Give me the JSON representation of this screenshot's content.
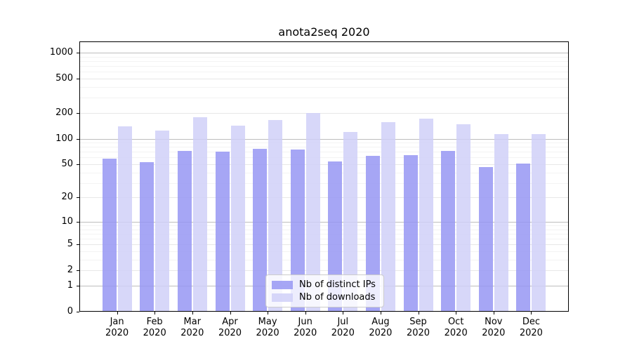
{
  "chart_data": {
    "type": "bar",
    "title": "anota2seq 2020",
    "year_label": "2020",
    "categories": [
      "Jan",
      "Feb",
      "Mar",
      "Apr",
      "May",
      "Jun",
      "Jul",
      "Aug",
      "Sep",
      "Oct",
      "Nov",
      "Dec"
    ],
    "series": [
      {
        "name": "Nb of distinct IPs",
        "color": "rgba(150,150,243,0.85)",
        "values": [
          58,
          53,
          72,
          71,
          76,
          75,
          54,
          63,
          64,
          72,
          46,
          51
        ]
      },
      {
        "name": "Nb of downloads",
        "color": "rgba(208,208,248,0.85)",
        "values": [
          140,
          124,
          179,
          142,
          165,
          201,
          120,
          156,
          171,
          146,
          114,
          113
        ]
      }
    ],
    "yscale": "log1p",
    "yticks": [
      0,
      1,
      2,
      5,
      10,
      20,
      50,
      100,
      200,
      500,
      1000
    ],
    "ylim": [
      0,
      1324
    ],
    "xlabel": "",
    "ylabel": "",
    "grid": true,
    "legend_position": "lower center",
    "grid_colors": {
      "major": "#bdbdbd",
      "medium": "#e7e7e7",
      "minor": "#f3f3f3"
    }
  }
}
